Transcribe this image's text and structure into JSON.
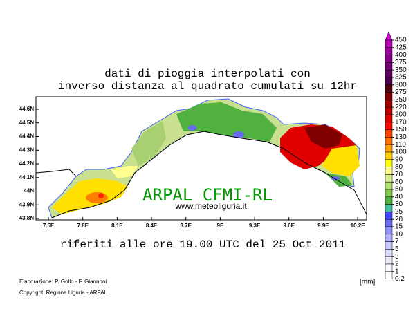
{
  "title": [
    "dati di pioggia interpolati con",
    "inverso distanza al quadrato cumulati su 12hr"
  ],
  "subtitle": "riferiti alle ore 19.00 UTC del 25 Oct 2011",
  "watermark": "ARPAL CFMI-RL",
  "website": "www.meteoliguria.it",
  "map": {
    "lonlim": [
      7.391,
      10.278
    ],
    "latlim": [
      43.79,
      44.691
    ],
    "lon_ticks": [
      {
        "value": 7.5,
        "label": "7.5E"
      },
      {
        "value": 7.8,
        "label": "7.8E"
      },
      {
        "value": 8.1,
        "label": "8.1E"
      },
      {
        "value": 8.4,
        "label": "8.4E"
      },
      {
        "value": 8.7,
        "label": "8.7E"
      },
      {
        "value": 9,
        "label": "9E"
      },
      {
        "value": 9.3,
        "label": "9.3E"
      },
      {
        "value": 9.6,
        "label": "9.6E"
      },
      {
        "value": 9.9,
        "label": "9.9E"
      },
      {
        "value": 10.2,
        "label": "10.2E"
      }
    ],
    "lat_ticks": [
      {
        "value": 44.6,
        "label": "44.6N"
      },
      {
        "value": 44.5,
        "label": "44.5N"
      },
      {
        "value": 44.4,
        "label": "44.4N"
      },
      {
        "value": 44.3,
        "label": "44.3N"
      },
      {
        "value": 44.2,
        "label": "44.2N"
      },
      {
        "value": 44.1,
        "label": "44.1N"
      },
      {
        "value": 44,
        "label": "44N"
      },
      {
        "value": 43.9,
        "label": "43.9N"
      },
      {
        "value": 43.8,
        "label": "43.8N"
      }
    ]
  },
  "legend": {
    "unit": "[mm]",
    "levels": [
      450,
      425,
      400,
      375,
      350,
      325,
      300,
      275,
      250,
      220,
      200,
      170,
      150,
      130,
      110,
      100,
      90,
      80,
      70,
      60,
      50,
      40,
      30,
      25,
      20,
      15,
      10,
      7,
      5,
      3,
      2,
      1,
      0.2
    ],
    "colors": [
      "#cc00cc",
      "#b000b0",
      "#9c009c",
      "#880088",
      "#740074",
      "#600060",
      "#4c004c",
      "#500010",
      "#800000",
      "#a00000",
      "#c00000",
      "#e00000",
      "#ff0000",
      "#ff4000",
      "#ff7000",
      "#ffa000",
      "#ffd000",
      "#ffff00",
      "#ffff90",
      "#d8f090",
      "#b0e070",
      "#80c850",
      "#50b040",
      "#40c0a0",
      "#4040ff",
      "#6868f0",
      "#9090ff",
      "#b0b0ff",
      "#c8c8ff",
      "#dcdcff",
      "#ececff",
      "#f8f8ff",
      "#ffffff"
    ]
  },
  "credits": [
    "Elaborazione: P. Gollo - F. Giannoni",
    "Copyright: Regione Liguria - ARPAL"
  ]
}
